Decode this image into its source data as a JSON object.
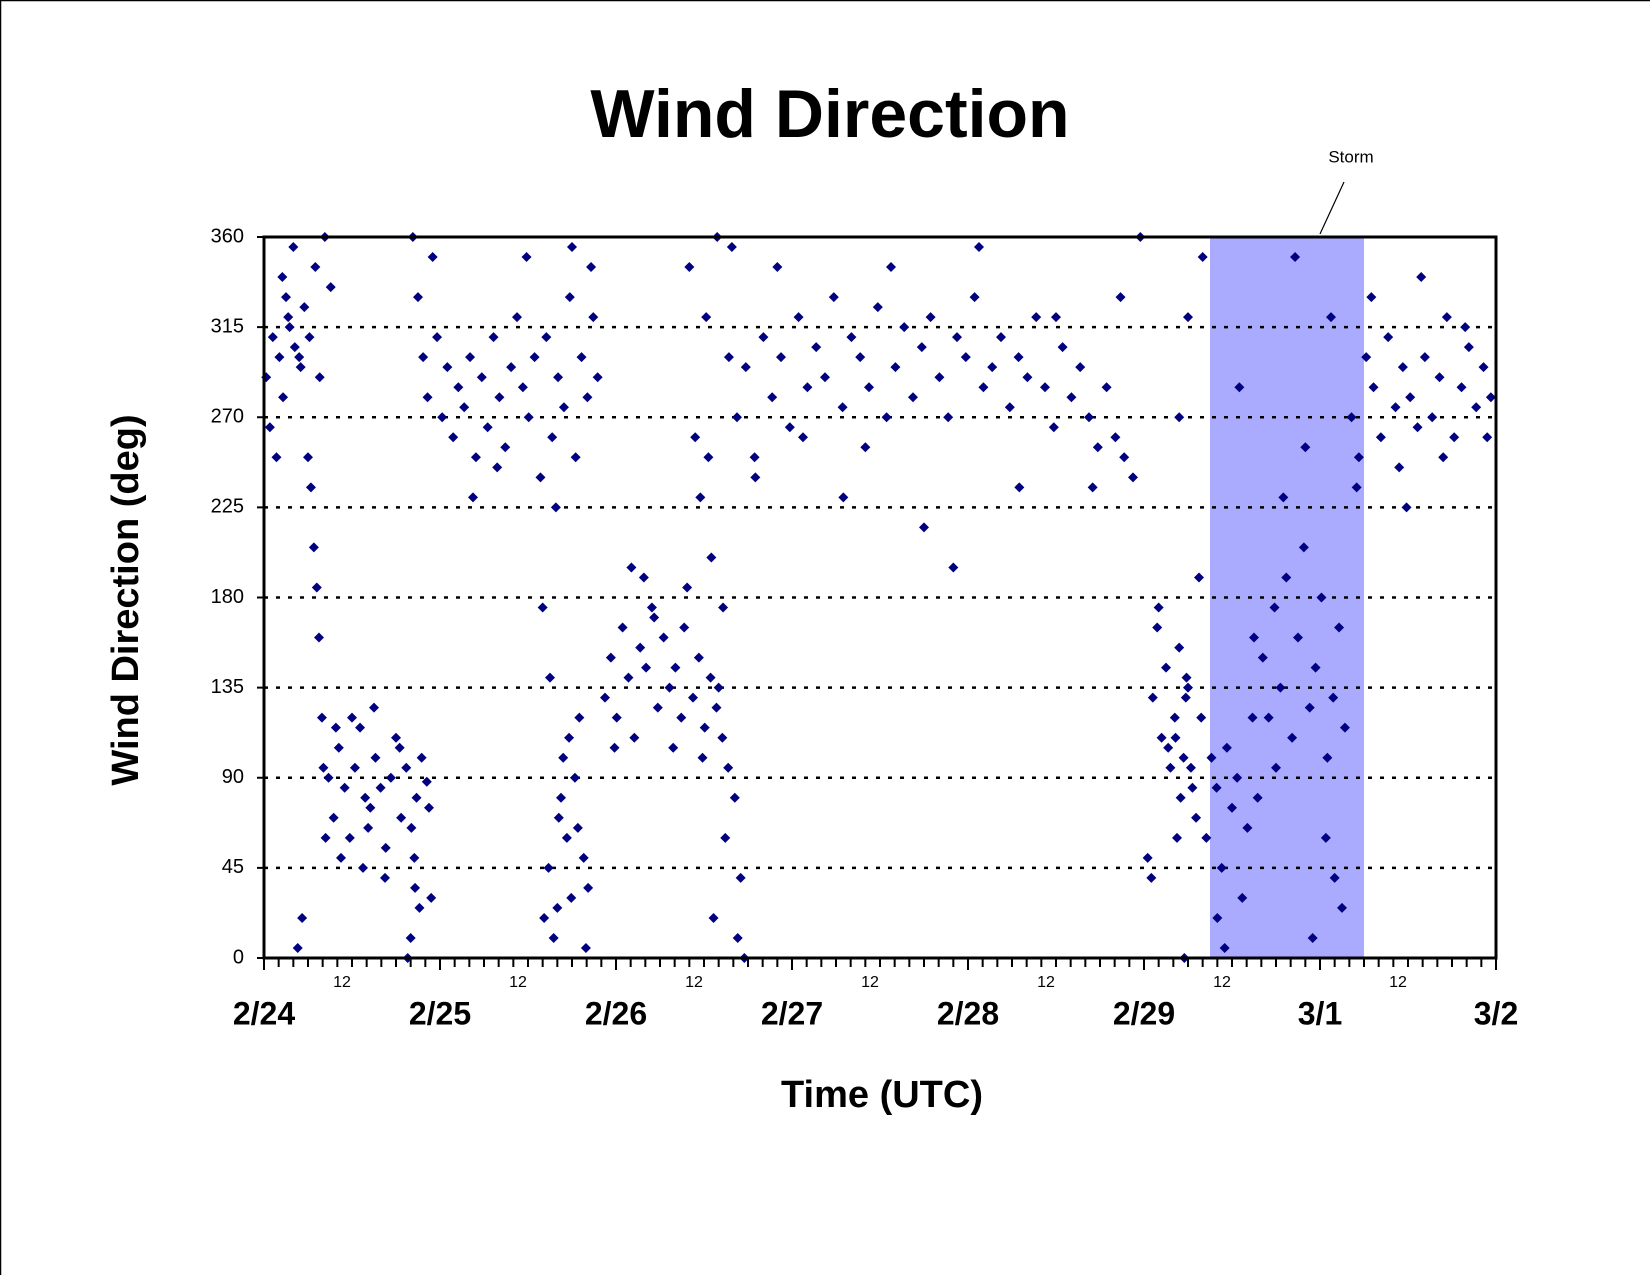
{
  "chart_data": {
    "type": "scatter",
    "title": "Wind Direction",
    "x_label": "Time (UTC)",
    "y_label": "Wind Direction (deg)",
    "annotation": "Storm",
    "color": "#000080",
    "grid": true,
    "highlight": {
      "xlim": [
        129,
        150
      ],
      "color": "#aaaaff"
    },
    "xlim": [
      0,
      168
    ],
    "ylim": [
      0,
      360
    ],
    "yticks": [
      0,
      45,
      90,
      135,
      180,
      225,
      270,
      315,
      360
    ],
    "xticks": [
      {
        "value": 0,
        "label": "2/24"
      },
      {
        "value": 24,
        "label": "2/25"
      },
      {
        "value": 48,
        "label": "2/26"
      },
      {
        "value": 72,
        "label": "2/27"
      },
      {
        "value": 96,
        "label": "2/28"
      },
      {
        "value": 120,
        "label": "2/29"
      },
      {
        "value": 144,
        "label": "3/1"
      },
      {
        "value": 168,
        "label": "3/2"
      }
    ],
    "x_sub_ticks": [
      {
        "value": 12,
        "label": "12"
      },
      {
        "value": 36,
        "label": "12"
      },
      {
        "value": 60,
        "label": "12"
      },
      {
        "value": 84,
        "label": "12"
      },
      {
        "value": 108,
        "label": "12"
      },
      {
        "value": 132,
        "label": "12"
      },
      {
        "value": 156,
        "label": "12"
      }
    ],
    "xminorticks": [
      2,
      4,
      6,
      8,
      10,
      14,
      16,
      18,
      20,
      22,
      26,
      28,
      30,
      32,
      34,
      38,
      40,
      42,
      44,
      46,
      50,
      52,
      54,
      56,
      58,
      62,
      64,
      66,
      68,
      70,
      74,
      76,
      78,
      80,
      82,
      86,
      88,
      90,
      92,
      94,
      98,
      100,
      102,
      104,
      106,
      110,
      112,
      114,
      116,
      118,
      122,
      124,
      126,
      128,
      130,
      134,
      136,
      138,
      140,
      142,
      146,
      148,
      150,
      152,
      154,
      158,
      160,
      162,
      164,
      166
    ],
    "x": [
      0.3,
      0.8,
      1.2,
      1.7,
      2.1,
      2.6,
      3.0,
      3.5,
      4.2,
      5.0,
      2.5,
      3.3,
      4.0,
      4.8,
      5.5,
      6.2,
      7.0,
      7.6,
      8.3,
      9.1,
      6.0,
      6.4,
      6.8,
      7.2,
      7.5,
      7.9,
      8.1,
      8.4,
      5.2,
      4.6,
      8.8,
      9.5,
      10.2,
      11.0,
      11.7,
      12.4,
      13.1,
      13.8,
      14.5,
      15.2,
      15.9,
      16.6,
      17.3,
      18.0,
      18.7,
      19.4,
      20.1,
      20.8,
      21.5,
      22.2,
      10.5,
      12.0,
      13.5,
      15.0,
      16.5,
      18.5,
      20.5,
      22.5,
      9.8,
      14.2,
      20.0,
      20.6,
      21.2,
      19.6,
      22.8,
      20.3,
      21.0,
      21.7,
      22.3,
      23.0,
      23.6,
      24.3,
      25.0,
      25.8,
      26.5,
      27.3,
      28.1,
      28.9,
      29.7,
      30.5,
      31.3,
      32.1,
      32.9,
      33.7,
      34.5,
      35.3,
      36.1,
      36.9,
      37.7,
      38.5,
      39.3,
      40.1,
      40.9,
      41.7,
      42.5,
      43.3,
      44.1,
      44.9,
      45.5,
      28.5,
      31.8,
      35.8,
      39.8,
      42.0,
      44.6,
      38.2,
      38.8,
      39.5,
      40.2,
      40.8,
      41.3,
      41.9,
      42.4,
      43.0,
      43.6,
      39.0,
      40.5,
      41.6,
      42.8,
      38.0,
      44.2,
      43.9,
      40.0,
      46.5,
      47.3,
      48.1,
      48.9,
      49.7,
      50.5,
      51.3,
      52.1,
      52.9,
      53.7,
      54.5,
      55.3,
      56.1,
      56.9,
      57.7,
      58.5,
      59.3,
      60.1,
      60.9,
      61.7,
      62.5,
      63.3,
      47.8,
      50.1,
      51.8,
      53.2,
      55.8,
      57.3,
      59.8,
      62.0,
      58.0,
      58.8,
      59.5,
      60.3,
      61.0,
      61.8,
      62.6,
      63.4,
      64.2,
      65.0,
      61.3,
      62.9,
      64.6,
      65.5,
      60.6,
      63.8,
      64.5,
      65.7,
      66.9,
      68.1,
      69.3,
      70.5,
      71.7,
      72.9,
      74.1,
      75.3,
      76.5,
      77.7,
      78.9,
      80.1,
      81.3,
      82.5,
      83.7,
      84.9,
      86.1,
      87.3,
      88.5,
      89.7,
      90.9,
      92.1,
      93.3,
      94.5,
      95.7,
      96.9,
      98.1,
      99.3,
      100.5,
      101.7,
      102.9,
      104.1,
      105.3,
      106.5,
      107.7,
      108.9,
      110.1,
      111.3,
      112.5,
      113.7,
      114.9,
      116.1,
      117.3,
      118.5,
      70.0,
      79.0,
      90.0,
      103.0,
      67.0,
      73.5,
      82.0,
      85.5,
      94.0,
      97.5,
      108.0,
      113.0,
      116.8,
      119.5,
      121.2,
      121.8,
      122.4,
      123.0,
      123.6,
      124.2,
      124.8,
      125.4,
      126.0,
      126.6,
      122.0,
      123.3,
      124.5,
      125.8,
      120.5,
      121.0,
      124.3,
      125.0,
      125.7,
      126.4,
      127.1,
      127.8,
      128.5,
      129.2,
      129.9,
      130.6,
      131.3,
      132.0,
      132.7,
      133.4,
      134.1,
      134.8,
      135.5,
      126.0,
      128.0,
      130.0,
      124.8,
      127.5,
      131.0,
      133.0,
      125.5,
      135.0,
      136.2,
      137.0,
      137.8,
      138.6,
      139.4,
      140.2,
      141.0,
      141.8,
      142.6,
      143.4,
      144.2,
      145.0,
      145.8,
      146.6,
      147.4,
      139.0,
      142.0,
      144.8,
      146.0,
      140.6,
      143.0,
      145.5,
      147.0,
      138.0,
      148.3,
      149.3,
      150.3,
      151.3,
      152.3,
      153.3,
      154.3,
      155.3,
      156.3,
      157.3,
      158.3,
      159.3,
      160.3,
      161.3,
      162.3,
      163.3,
      164.3,
      165.3,
      166.3,
      167.3,
      149.0,
      151.0,
      154.8,
      157.8,
      160.8,
      163.8,
      166.8,
      155.8
    ],
    "values": [
      290,
      265,
      310,
      250,
      300,
      280,
      330,
      315,
      305,
      295,
      340,
      320,
      355,
      300,
      325,
      310,
      345,
      290,
      360,
      335,
      250,
      235,
      205,
      185,
      160,
      120,
      95,
      60,
      20,
      5,
      90,
      70,
      105,
      85,
      60,
      95,
      115,
      80,
      75,
      100,
      85,
      55,
      90,
      110,
      70,
      95,
      65,
      80,
      100,
      88,
      50,
      120,
      45,
      125,
      40,
      105,
      50,
      75,
      115,
      65,
      10,
      35,
      25,
      0,
      30,
      360,
      330,
      300,
      280,
      350,
      310,
      270,
      295,
      260,
      285,
      275,
      300,
      250,
      290,
      265,
      310,
      280,
      255,
      295,
      320,
      285,
      270,
      300,
      240,
      310,
      260,
      290,
      275,
      330,
      250,
      300,
      280,
      320,
      290,
      230,
      245,
      350,
      225,
      355,
      345,
      20,
      45,
      10,
      70,
      100,
      60,
      30,
      90,
      120,
      50,
      140,
      80,
      110,
      65,
      175,
      35,
      5,
      25,
      130,
      150,
      120,
      165,
      140,
      110,
      155,
      145,
      175,
      125,
      160,
      135,
      145,
      120,
      185,
      130,
      150,
      115,
      140,
      125,
      110,
      95,
      105,
      195,
      190,
      170,
      105,
      165,
      100,
      135,
      345,
      260,
      230,
      320,
      200,
      360,
      175,
      300,
      80,
      40,
      20,
      60,
      10,
      0,
      250,
      355,
      270,
      295,
      250,
      310,
      280,
      300,
      265,
      320,
      285,
      305,
      290,
      330,
      275,
      310,
      300,
      285,
      325,
      270,
      295,
      315,
      280,
      305,
      320,
      290,
      270,
      310,
      300,
      330,
      285,
      295,
      310,
      275,
      300,
      290,
      320,
      285,
      265,
      305,
      280,
      295,
      270,
      255,
      285,
      260,
      250,
      240,
      345,
      230,
      215,
      235,
      240,
      260,
      255,
      345,
      195,
      355,
      320,
      235,
      330,
      360,
      130,
      165,
      110,
      145,
      95,
      120,
      155,
      100,
      135,
      85,
      175,
      105,
      60,
      140,
      50,
      40,
      110,
      80,
      130,
      95,
      70,
      120,
      60,
      100,
      85,
      45,
      105,
      75,
      90,
      30,
      65,
      120,
      80,
      320,
      350,
      20,
      270,
      190,
      5,
      285,
      0,
      160,
      150,
      120,
      175,
      135,
      190,
      110,
      160,
      205,
      125,
      145,
      180,
      100,
      130,
      165,
      115,
      230,
      255,
      60,
      40,
      350,
      10,
      320,
      25,
      95,
      270,
      250,
      300,
      285,
      260,
      310,
      275,
      295,
      280,
      265,
      300,
      270,
      290,
      320,
      260,
      285,
      305,
      275,
      295,
      280,
      235,
      330,
      245,
      340,
      250,
      315,
      260,
      225
    ]
  }
}
